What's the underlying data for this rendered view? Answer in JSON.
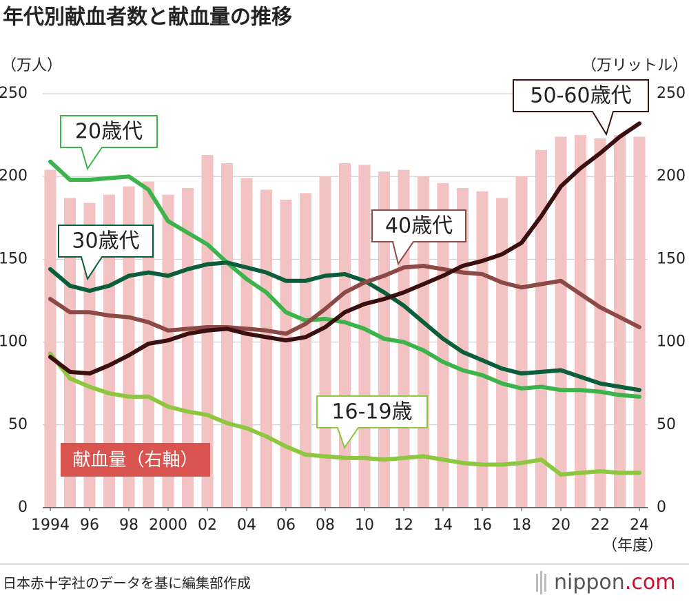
{
  "chart_data": {
    "type": "bar-line",
    "title": "年代別献血者数と献血量の推移",
    "y_label": "（万人）",
    "y2_label": "（万リットル）",
    "x_label": "（年度）",
    "source": "日本赤十字社のデータを基に編集部作成",
    "logo": "nippon",
    "logo_suffix": ".com",
    "x": [
      1994,
      1995,
      1996,
      1997,
      1998,
      1999,
      2000,
      2001,
      2002,
      2003,
      2004,
      2005,
      2006,
      2007,
      2008,
      2009,
      2010,
      2011,
      2012,
      2013,
      2014,
      2015,
      2016,
      2017,
      2018,
      2019,
      2020,
      2021,
      2022,
      2023,
      2024
    ],
    "xlim": [
      1993.6,
      2024.6
    ],
    "xticks": [
      1994,
      {
        "value": 1996,
        "label": "96"
      },
      {
        "value": 1998,
        "label": "98"
      },
      2000,
      {
        "value": 2002,
        "label": "02"
      },
      {
        "value": 2004,
        "label": "04"
      },
      {
        "value": 2006,
        "label": "06"
      },
      {
        "value": 2008,
        "label": "08"
      },
      {
        "value": 2010,
        "label": "10"
      },
      {
        "value": 2012,
        "label": "12"
      },
      {
        "value": 2014,
        "label": "14"
      },
      {
        "value": 2016,
        "label": "16"
      },
      {
        "value": 2018,
        "label": "18"
      },
      {
        "value": 2020,
        "label": "20"
      },
      {
        "value": 2022,
        "label": "22"
      },
      {
        "value": 2024,
        "label": "24"
      }
    ],
    "ylim": [
      0,
      250
    ],
    "yticks": [
      0,
      50,
      100,
      150,
      200,
      250
    ],
    "y2lim": [
      0,
      250
    ],
    "y2ticks": [
      0,
      50,
      100,
      150,
      200,
      250
    ],
    "grid": true,
    "series": [
      {
        "name": "献血量（右軸）",
        "type": "bar",
        "axis": "y2",
        "color": "#f3c2c2",
        "values": [
          204,
          187,
          184,
          189,
          194,
          197,
          189,
          193,
          213,
          208,
          199,
          192,
          186,
          190,
          200,
          208,
          207,
          203,
          204,
          200,
          196,
          193,
          191,
          187,
          200,
          216,
          224,
          225,
          223,
          225,
          224
        ]
      },
      {
        "name": "16-19歳",
        "type": "line",
        "color": "#8dc63f",
        "values": [
          93,
          78,
          73,
          69,
          67,
          67,
          61,
          58,
          56,
          51,
          48,
          43,
          37,
          32,
          31,
          30,
          30,
          29,
          30,
          31,
          29,
          27,
          26,
          26,
          27,
          29,
          20,
          21,
          22,
          21,
          21
        ]
      },
      {
        "name": "20歳代",
        "type": "line",
        "color": "#3cb44b",
        "values": [
          209,
          198,
          198,
          199,
          200,
          192,
          173,
          166,
          159,
          148,
          138,
          130,
          118,
          113,
          114,
          112,
          108,
          102,
          100,
          95,
          88,
          83,
          80,
          75,
          72,
          73,
          71,
          71,
          70,
          68,
          67
        ]
      },
      {
        "name": "30歳代",
        "type": "line",
        "color": "#0b5e3a",
        "values": [
          144,
          134,
          131,
          134,
          140,
          142,
          140,
          144,
          147,
          148,
          145,
          142,
          137,
          137,
          140,
          141,
          137,
          130,
          122,
          112,
          102,
          94,
          89,
          84,
          81,
          82,
          83,
          79,
          75,
          73,
          71
        ]
      },
      {
        "name": "40歳代",
        "type": "line",
        "color": "#8b4a45",
        "values": [
          126,
          118,
          118,
          116,
          115,
          112,
          107,
          108,
          109,
          109,
          108,
          107,
          105,
          111,
          120,
          130,
          136,
          140,
          145,
          146,
          144,
          142,
          141,
          136,
          133,
          135,
          137,
          129,
          121,
          115,
          109
        ]
      },
      {
        "name": "50-60歳代",
        "type": "line",
        "color": "#3a0f0f",
        "values": [
          91,
          82,
          81,
          86,
          92,
          99,
          101,
          105,
          107,
          108,
          105,
          103,
          101,
          103,
          109,
          118,
          123,
          126,
          130,
          135,
          140,
          146,
          149,
          153,
          160,
          176,
          194,
          205,
          214,
          224,
          232
        ]
      }
    ]
  }
}
